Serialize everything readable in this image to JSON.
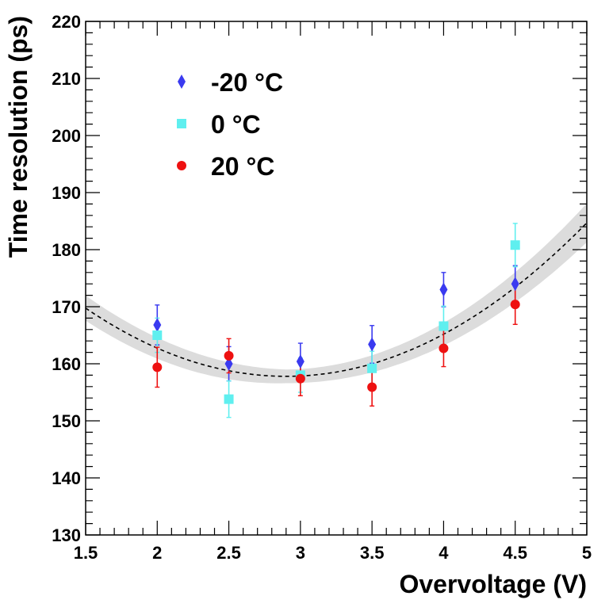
{
  "chart_data": {
    "type": "scatter",
    "xlabel": "Overvoltage (V)",
    "ylabel": "Time resolution (ps)",
    "xlim": [
      1.5,
      5
    ],
    "ylim": [
      130,
      220
    ],
    "x_ticks": [
      "1.5",
      "2",
      "2.5",
      "3",
      "3.5",
      "4",
      "4.5",
      "5"
    ],
    "y_ticks": [
      "130",
      "140",
      "150",
      "160",
      "170",
      "180",
      "190",
      "200",
      "210",
      "220"
    ],
    "grid": false,
    "legend_position": "top-left",
    "series": [
      {
        "name": "-20 °C",
        "marker": "diamond",
        "color": "#3a3af0",
        "points": [
          {
            "x": 2.0,
            "y": 166.8,
            "err": 3.5
          },
          {
            "x": 2.5,
            "y": 160.0,
            "err": 3.0
          },
          {
            "x": 3.0,
            "y": 160.4,
            "err": 3.2
          },
          {
            "x": 3.5,
            "y": 163.4,
            "err": 3.3
          },
          {
            "x": 4.0,
            "y": 173.0,
            "err": 3.0
          },
          {
            "x": 4.5,
            "y": 174.0,
            "err": 3.2
          }
        ]
      },
      {
        "name": "0 °C",
        "marker": "square",
        "color": "#5fefef",
        "points": [
          {
            "x": 2.0,
            "y": 165.0,
            "err": 3.0
          },
          {
            "x": 2.5,
            "y": 153.8,
            "err": 3.2
          },
          {
            "x": 3.0,
            "y": 158.0,
            "err": 3.0
          },
          {
            "x": 3.5,
            "y": 159.2,
            "err": 3.0
          },
          {
            "x": 4.0,
            "y": 166.6,
            "err": 3.5
          },
          {
            "x": 4.5,
            "y": 180.8,
            "err": 3.8
          }
        ]
      },
      {
        "name": "20 °C",
        "marker": "circle",
        "color": "#ee1111",
        "points": [
          {
            "x": 2.0,
            "y": 159.4,
            "err": 3.5
          },
          {
            "x": 2.5,
            "y": 161.4,
            "err": 3.0
          },
          {
            "x": 3.0,
            "y": 157.4,
            "err": 3.0
          },
          {
            "x": 3.5,
            "y": 155.9,
            "err": 3.3
          },
          {
            "x": 4.0,
            "y": 162.7,
            "err": 3.2
          },
          {
            "x": 4.5,
            "y": 170.4,
            "err": 3.5
          }
        ]
      }
    ],
    "fit": {
      "type": "quadratic",
      "vertex_x": 2.9,
      "vertex_y": 157.8,
      "curvature": 6.1,
      "band_halfwidth": [
        2.2,
        1.2,
        3.4
      ],
      "band_color": "#dcdcdc",
      "line_color": "#000000"
    }
  }
}
